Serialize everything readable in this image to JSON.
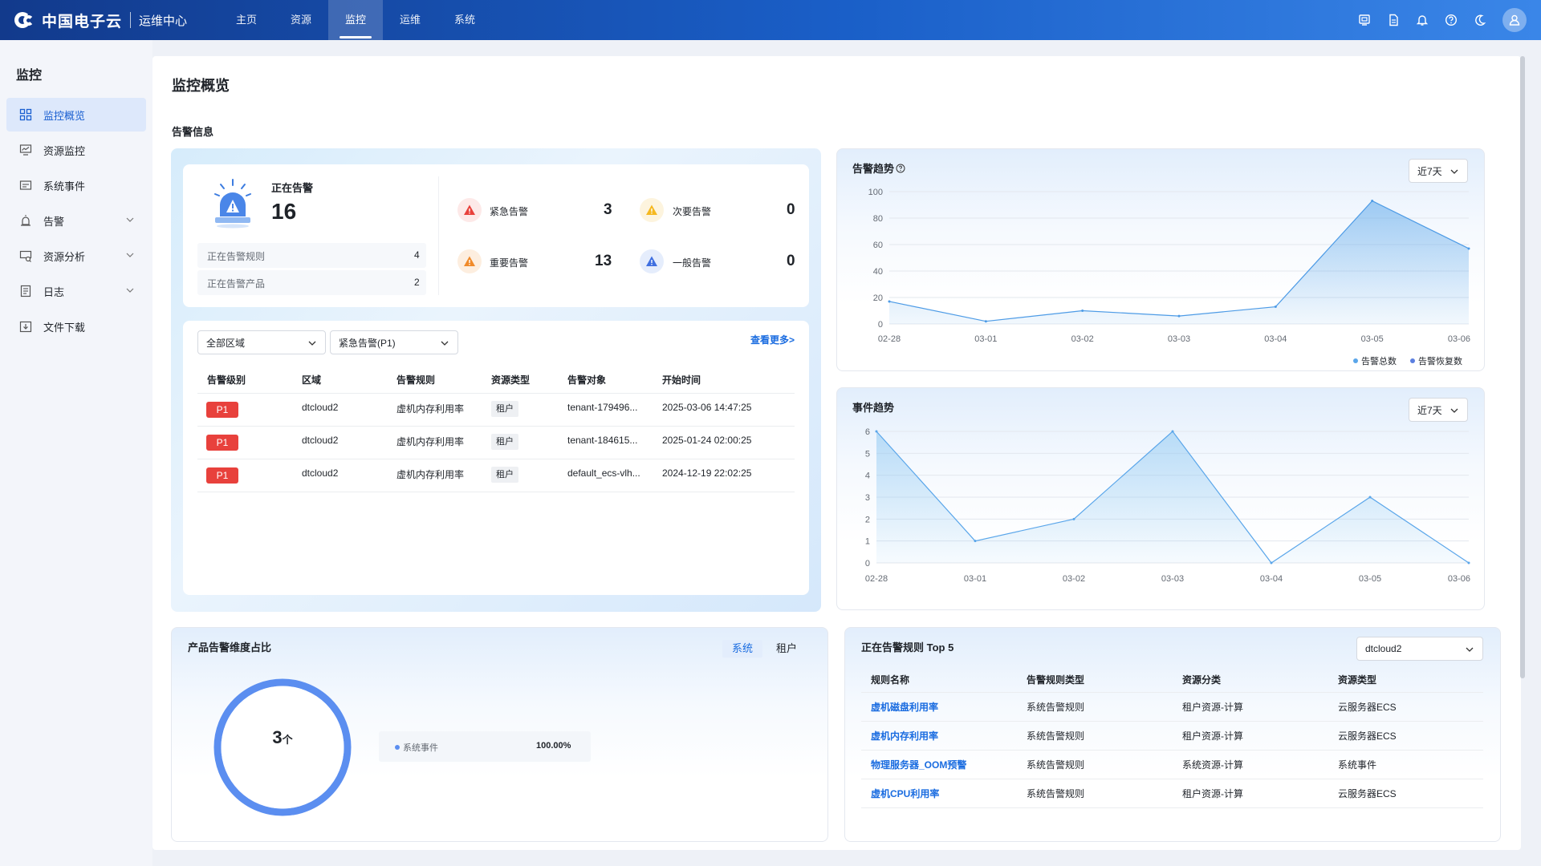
{
  "app": {
    "brand": "中国电子云",
    "subtitle": "运维中心",
    "nav": [
      "主页",
      "资源",
      "监控",
      "运维",
      "系统"
    ],
    "active_nav": "监控"
  },
  "top_icons": [
    "screen-icon",
    "document-icon",
    "bell-icon",
    "help-icon",
    "moon-icon",
    "user-icon"
  ],
  "sidebar": {
    "title": "监控",
    "items": [
      {
        "label": "监控概览",
        "icon": "grid-icon",
        "active": true
      },
      {
        "label": "资源监控",
        "icon": "monitor-icon"
      },
      {
        "label": "系统事件",
        "icon": "event-icon"
      },
      {
        "label": "告警",
        "icon": "alarm-icon",
        "expandable": true
      },
      {
        "label": "资源分析",
        "icon": "analysis-icon",
        "expandable": true
      },
      {
        "label": "日志",
        "icon": "log-icon",
        "expandable": true
      },
      {
        "label": "文件下载",
        "icon": "download-icon"
      }
    ]
  },
  "page": {
    "title": "监控概览",
    "section_title": "告警信息"
  },
  "alarm_summary": {
    "active_label": "正在告警",
    "active_count": "16",
    "rules_label": "正在告警规则",
    "rules_count": "4",
    "products_label": "正在告警产品",
    "products_count": "2",
    "severities": [
      {
        "label": "紧急告警",
        "count": "3",
        "color": "#e8413c"
      },
      {
        "label": "次要告警",
        "count": "0",
        "color": "#f5b820"
      },
      {
        "label": "重要告警",
        "count": "13",
        "color": "#f08a2a"
      },
      {
        "label": "一般告警",
        "count": "0",
        "color": "#3f6fe0"
      }
    ]
  },
  "alarm_list": {
    "region_select": "全部区域",
    "level_select": "紧急告警(P1)",
    "more_link": "查看更多>",
    "headers": [
      "告警级别",
      "区域",
      "告警规则",
      "资源类型",
      "告警对象",
      "开始时间"
    ],
    "rows": [
      {
        "level": "P1",
        "region": "dtcloud2",
        "rule": "虚机内存利用率",
        "type": "租户",
        "object": "tenant-179496...",
        "time": "2025-03-06 14:47:25"
      },
      {
        "level": "P1",
        "region": "dtcloud2",
        "rule": "虚机内存利用率",
        "type": "租户",
        "object": "tenant-184615...",
        "time": "2025-01-24 02:00:25"
      },
      {
        "level": "P1",
        "region": "dtcloud2",
        "rule": "虚机内存利用率",
        "type": "租户",
        "object": "default_ecs-vlh...",
        "time": "2024-12-19 22:02:25"
      }
    ]
  },
  "alarm_trend": {
    "title": "告警趋势",
    "range": "近7天",
    "legend": [
      "告警总数",
      "告警恢复数"
    ],
    "colors": {
      "total": "#5aa6ea",
      "recovered": "#5b7fe0"
    }
  },
  "event_trend": {
    "title": "事件趋势",
    "range": "近7天"
  },
  "chart_data": [
    {
      "type": "area",
      "title": "告警趋势",
      "categories": [
        "02-28",
        "03-01",
        "03-02",
        "03-03",
        "03-04",
        "03-05",
        "03-06"
      ],
      "yticks": [
        "0",
        "20",
        "40",
        "60",
        "80",
        "100"
      ],
      "ylim": [
        0,
        100
      ],
      "series": [
        {
          "name": "告警总数",
          "values": [
            17,
            2,
            10,
            6,
            13,
            93,
            57
          ]
        },
        {
          "name": "告警恢复数",
          "values": [
            0,
            0,
            0,
            0,
            0,
            0,
            0
          ]
        }
      ]
    },
    {
      "type": "area",
      "title": "事件趋势",
      "categories": [
        "02-28",
        "03-01",
        "03-02",
        "03-03",
        "03-04",
        "03-05",
        "03-06"
      ],
      "yticks": [
        "0",
        "1",
        "2",
        "3",
        "4",
        "5",
        "6"
      ],
      "ylim": [
        0,
        6
      ],
      "series": [
        {
          "values": [
            6,
            1,
            2,
            6,
            0,
            3,
            0
          ]
        }
      ]
    },
    {
      "type": "pie",
      "title": "产品告警维度占比",
      "categories": [
        "系统事件"
      ],
      "values": [
        100
      ]
    }
  ],
  "dimension": {
    "title": "产品告警维度占比",
    "tabs": [
      "系统",
      "租户"
    ],
    "active_tab": "系统",
    "total_num": "3",
    "total_unit": "个",
    "legend_label": "系统事件",
    "legend_pct": "100.00%",
    "color": "#5b8ef0"
  },
  "top_rules": {
    "title": "正在告警规则 Top 5",
    "region": "dtcloud2",
    "headers": [
      "规则名称",
      "告警规则类型",
      "资源分类",
      "资源类型"
    ],
    "rows": [
      {
        "name": "虚机磁盘利用率",
        "type": "系统告警规则",
        "category": "租户资源-计算",
        "resource": "云服务器ECS"
      },
      {
        "name": "虚机内存利用率",
        "type": "系统告警规则",
        "category": "租户资源-计算",
        "resource": "云服务器ECS"
      },
      {
        "name": "物理服务器_OOM预警",
        "type": "系统告警规则",
        "category": "系统资源-计算",
        "resource": "系统事件"
      },
      {
        "name": "虚机CPU利用率",
        "type": "系统告警规则",
        "category": "租户资源-计算",
        "resource": "云服务器ECS"
      }
    ]
  }
}
